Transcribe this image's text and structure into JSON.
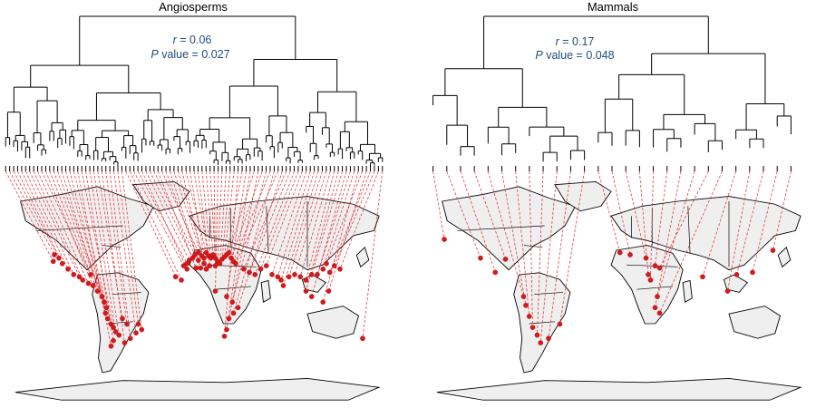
{
  "panels": [
    {
      "title": "Angiosperms",
      "stat_r_label": "r",
      "stat_r_value": "= 0.06",
      "stat_p_label": "P",
      "stat_p_value": "value = 0.027",
      "n_tips": 95,
      "tip_order_by_longitude": true
    },
    {
      "title": "Mammals",
      "stat_r_label": "r",
      "stat_r_value": "= 0.17",
      "stat_p_label": "P",
      "stat_p_value": "value = 0.048",
      "n_tips": 27,
      "tip_order_by_longitude": true
    }
  ],
  "colors": {
    "link": "#e41a1c",
    "site": "#d7191c",
    "land": "#efefef",
    "stat_text": "#1f4e79"
  },
  "sites": {
    "angiosperms": [
      [
        -122,
        48
      ],
      [
        -118,
        45
      ],
      [
        -115,
        40
      ],
      [
        -110,
        35
      ],
      [
        -105,
        30
      ],
      [
        -100,
        28
      ],
      [
        -97,
        25
      ],
      [
        -92,
        22
      ],
      [
        -88,
        20
      ],
      [
        -84,
        15
      ],
      [
        -80,
        10
      ],
      [
        -78,
        5
      ],
      [
        -76,
        0
      ],
      [
        -77,
        -5
      ],
      [
        -75,
        -10
      ],
      [
        -72,
        -15
      ],
      [
        -70,
        -18
      ],
      [
        -68,
        -22
      ],
      [
        -65,
        -25
      ],
      [
        -70,
        -30
      ],
      [
        -72,
        -35
      ],
      [
        -60,
        -32
      ],
      [
        -55,
        -28
      ],
      [
        -50,
        -23
      ],
      [
        -48,
        -15
      ],
      [
        -45,
        -20
      ],
      [
        -58,
        -15
      ],
      [
        -62,
        -10
      ],
      [
        -123,
        42
      ],
      [
        -90,
        30
      ],
      [
        -5,
        40
      ],
      [
        -3,
        43
      ],
      [
        0,
        45
      ],
      [
        2,
        48
      ],
      [
        5,
        50
      ],
      [
        8,
        47
      ],
      [
        10,
        45
      ],
      [
        12,
        50
      ],
      [
        14,
        47
      ],
      [
        16,
        45
      ],
      [
        18,
        48
      ],
      [
        20,
        45
      ],
      [
        22,
        42
      ],
      [
        24,
        40
      ],
      [
        26,
        44
      ],
      [
        28,
        46
      ],
      [
        30,
        48
      ],
      [
        32,
        50
      ],
      [
        34,
        45
      ],
      [
        36,
        42
      ],
      [
        38,
        40
      ],
      [
        15,
        38
      ],
      [
        20,
        38
      ],
      [
        10,
        40
      ],
      [
        5,
        43
      ],
      [
        -8,
        38
      ],
      [
        7,
        36
      ],
      [
        3,
        36
      ],
      [
        12,
        35
      ],
      [
        -5,
        35
      ],
      [
        -15,
        28
      ],
      [
        -10,
        25
      ],
      [
        20,
        15
      ],
      [
        30,
        10
      ],
      [
        35,
        5
      ],
      [
        40,
        0
      ],
      [
        36,
        -5
      ],
      [
        32,
        -10
      ],
      [
        30,
        -20
      ],
      [
        28,
        -26
      ],
      [
        45,
        35
      ],
      [
        50,
        32
      ],
      [
        55,
        30
      ],
      [
        60,
        35
      ],
      [
        65,
        38
      ],
      [
        70,
        30
      ],
      [
        75,
        28
      ],
      [
        78,
        25
      ],
      [
        80,
        20
      ],
      [
        85,
        28
      ],
      [
        90,
        30
      ],
      [
        95,
        28
      ],
      [
        100,
        25
      ],
      [
        105,
        30
      ],
      [
        110,
        30
      ],
      [
        115,
        35
      ],
      [
        118,
        40
      ],
      [
        121,
        32
      ],
      [
        125,
        38
      ],
      [
        130,
        35
      ],
      [
        100,
        15
      ],
      [
        105,
        10
      ],
      [
        120,
        15
      ],
      [
        115,
        5
      ],
      [
        150,
        -28
      ]
    ],
    "mammals": [
      [
        -150,
        62
      ],
      [
        -118,
        45
      ],
      [
        -96,
        44
      ],
      [
        -80,
        10
      ],
      [
        -78,
        2
      ],
      [
        -75,
        -8
      ],
      [
        -72,
        -18
      ],
      [
        -68,
        -25
      ],
      [
        -65,
        -32
      ],
      [
        -58,
        -28
      ],
      [
        -48,
        -15
      ],
      [
        -105,
        32
      ],
      [
        5,
        50
      ],
      [
        14,
        48
      ],
      [
        28,
        45
      ],
      [
        36,
        38
      ],
      [
        40,
        36
      ],
      [
        30,
        30
      ],
      [
        32,
        25
      ],
      [
        38,
        10
      ],
      [
        36,
        0
      ],
      [
        40,
        -5
      ],
      [
        78,
        28
      ],
      [
        100,
        15
      ],
      [
        108,
        30
      ],
      [
        122,
        32
      ],
      [
        140,
        52
      ]
    ]
  }
}
